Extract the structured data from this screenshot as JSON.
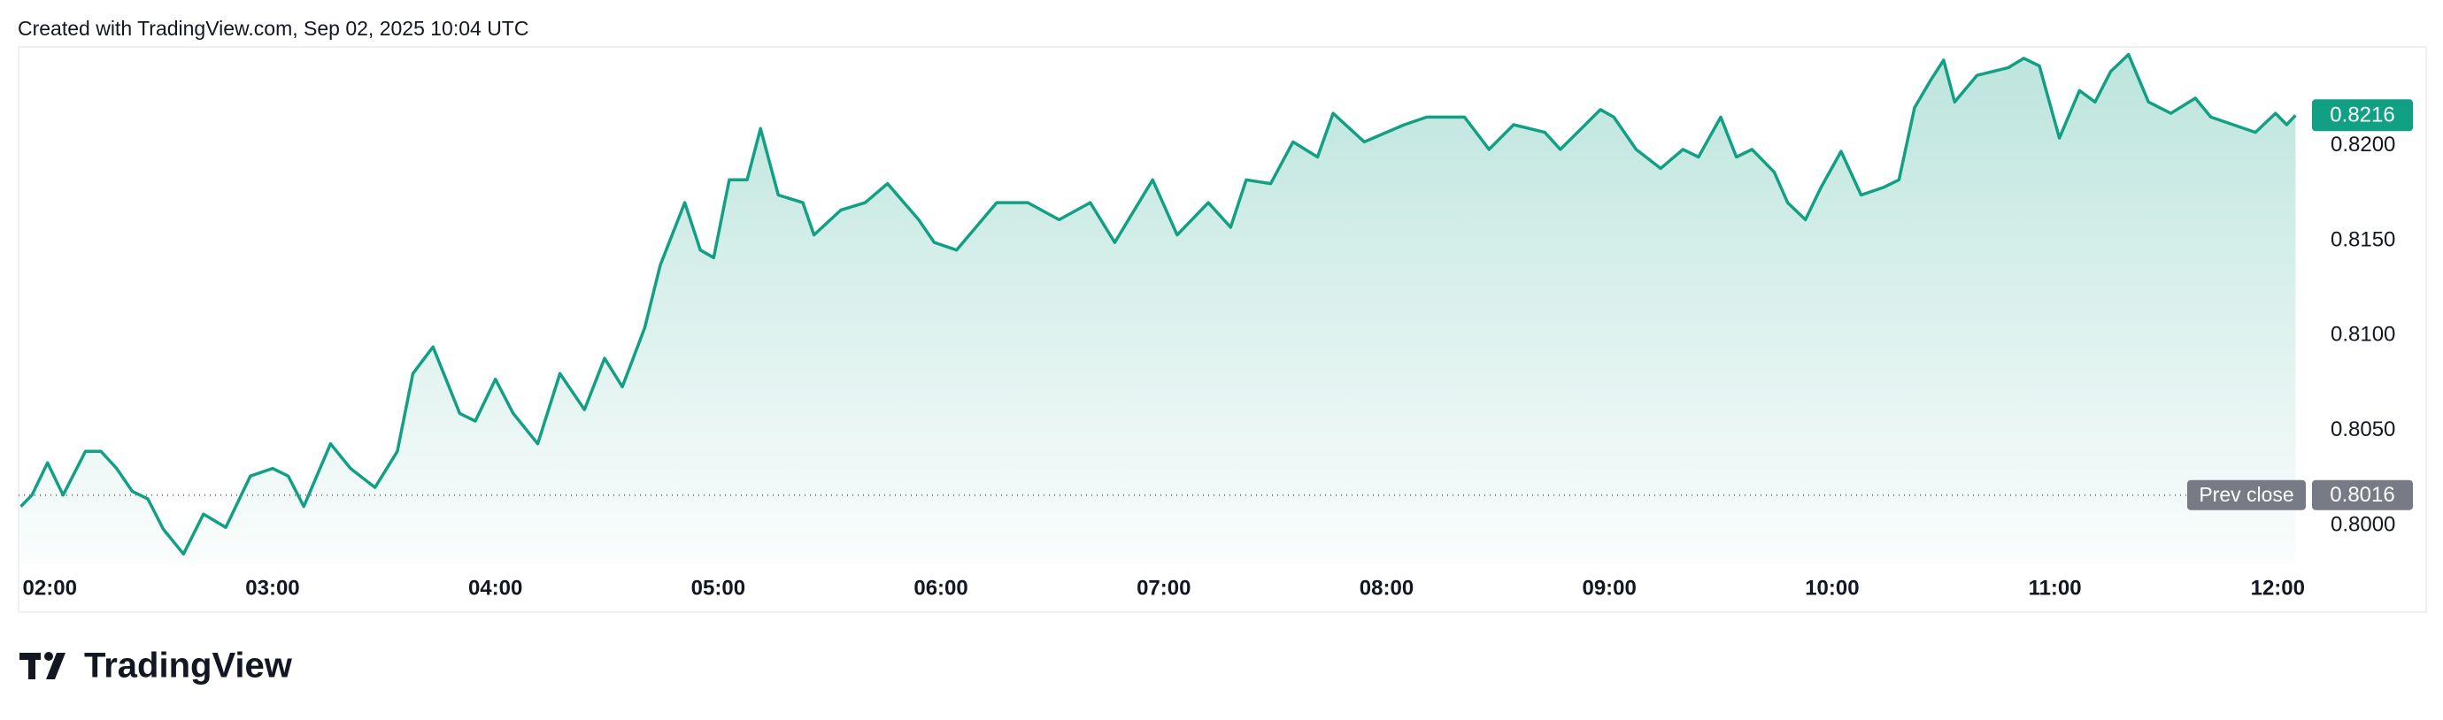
{
  "header": {
    "text": "Created with TradingView.com, Sep 02, 2025 10:04 UTC"
  },
  "logo": {
    "text": "TradingView"
  },
  "chart_data": {
    "type": "line",
    "color": "#12a085",
    "x": [
      1.87,
      1.92,
      1.99,
      2.06,
      2.16,
      2.23,
      2.3,
      2.37,
      2.44,
      2.51,
      2.6,
      2.69,
      2.79,
      2.9,
      3.0,
      3.07,
      3.14,
      3.26,
      3.35,
      3.46,
      3.56,
      3.63,
      3.72,
      3.84,
      3.91,
      4.0,
      4.08,
      4.19,
      4.29,
      4.4,
      4.49,
      4.57,
      4.67,
      4.74,
      4.85,
      4.92,
      4.98,
      5.05,
      5.13,
      5.19,
      5.27,
      5.38,
      5.43,
      5.55,
      5.66,
      5.76,
      5.9,
      5.97,
      6.07,
      6.25,
      6.39,
      6.53,
      6.67,
      6.78,
      6.95,
      7.06,
      7.2,
      7.3,
      7.37,
      7.48,
      7.58,
      7.69,
      7.76,
      7.9,
      8.08,
      8.18,
      8.35,
      8.46,
      8.57,
      8.71,
      8.78,
      8.96,
      9.02,
      9.12,
      9.23,
      9.33,
      9.4,
      9.5,
      9.57,
      9.64,
      9.74,
      9.8,
      9.88,
      9.95,
      10.04,
      10.13,
      10.23,
      10.3,
      10.37,
      10.44,
      10.5,
      10.55,
      10.65,
      10.79,
      10.86,
      10.93,
      11.02,
      11.11,
      11.18,
      11.25,
      11.33,
      11.42,
      11.52,
      11.63,
      11.7,
      11.8,
      11.9,
      11.99,
      12.04,
      12.08
    ],
    "values": [
      0.801,
      0.8016,
      0.8033,
      0.8016,
      0.8039,
      0.8039,
      0.803,
      0.8018,
      0.8014,
      0.7998,
      0.7985,
      0.8006,
      0.7999,
      0.8026,
      0.803,
      0.8026,
      0.801,
      0.8043,
      0.803,
      0.802,
      0.8039,
      0.808,
      0.8094,
      0.8059,
      0.8055,
      0.8077,
      0.8059,
      0.8043,
      0.808,
      0.8061,
      0.8088,
      0.8073,
      0.8104,
      0.8137,
      0.817,
      0.8145,
      0.8141,
      0.8182,
      0.8182,
      0.8209,
      0.8174,
      0.817,
      0.8153,
      0.8166,
      0.817,
      0.818,
      0.8161,
      0.8149,
      0.8145,
      0.817,
      0.817,
      0.8161,
      0.817,
      0.8149,
      0.8182,
      0.8153,
      0.817,
      0.8157,
      0.8182,
      0.818,
      0.8202,
      0.8194,
      0.8217,
      0.8202,
      0.8211,
      0.8215,
      0.8215,
      0.8198,
      0.8211,
      0.8207,
      0.8198,
      0.8219,
      0.8215,
      0.8198,
      0.8188,
      0.8198,
      0.8194,
      0.8215,
      0.8194,
      0.8198,
      0.8186,
      0.817,
      0.8161,
      0.8178,
      0.8197,
      0.8174,
      0.8178,
      0.8182,
      0.822,
      0.8234,
      0.8245,
      0.8223,
      0.8237,
      0.8241,
      0.8246,
      0.8242,
      0.8204,
      0.8229,
      0.8223,
      0.8239,
      0.8248,
      0.8223,
      0.8217,
      0.8225,
      0.8215,
      0.8211,
      0.8207,
      0.8217,
      0.8211,
      0.8216
    ],
    "xlim": [
      1.86,
      12.11
    ],
    "xticks": [
      {
        "value": 2,
        "label": "02:00"
      },
      {
        "value": 3,
        "label": "03:00"
      },
      {
        "value": 4,
        "label": "04:00"
      },
      {
        "value": 5,
        "label": "05:00"
      },
      {
        "value": 6,
        "label": "06:00"
      },
      {
        "value": 7,
        "label": "07:00"
      },
      {
        "value": 8,
        "label": "08:00"
      },
      {
        "value": 9,
        "label": "09:00"
      },
      {
        "value": 10,
        "label": "10:00"
      },
      {
        "value": 11,
        "label": "11:00"
      },
      {
        "value": 12,
        "label": "12:00"
      }
    ],
    "ylim": [
      0.798,
      0.8252
    ],
    "yticks": [
      {
        "value": 0.8,
        "label": "0.8000"
      },
      {
        "value": 0.805,
        "label": "0.8050"
      },
      {
        "value": 0.81,
        "label": "0.8100"
      },
      {
        "value": 0.815,
        "label": "0.8150"
      },
      {
        "value": 0.82,
        "label": "0.8200"
      }
    ],
    "prev_close": 0.8016,
    "prev_close_label": "Prev close"
  }
}
